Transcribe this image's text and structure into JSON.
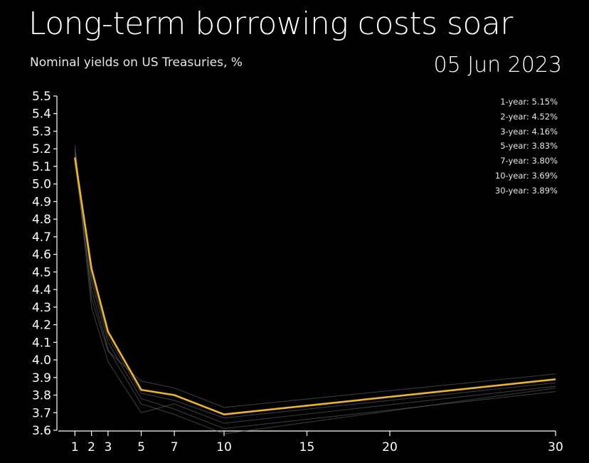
{
  "header": {
    "title": "Long-term borrowing costs soar",
    "subtitle": "Nominal yields on US Treasuries, %",
    "date": "05 Jun 2023"
  },
  "colors": {
    "background": "#000000",
    "current_line": "#f0b429",
    "history_lines": "#6a6a6a",
    "text": "#ffffff"
  },
  "chart_data": {
    "type": "line",
    "title": "Long-term borrowing costs soar",
    "subtitle": "Nominal yields on US Treasuries, %",
    "xlabel": "",
    "ylabel": "",
    "x": [
      1,
      2,
      3,
      5,
      7,
      10,
      30
    ],
    "xlim": [
      0,
      30
    ],
    "ylim": [
      3.6,
      5.5
    ],
    "x_ticks": [
      1,
      2,
      3,
      5,
      7,
      10,
      15,
      20,
      30
    ],
    "y_ticks": [
      "3.6",
      "3.7",
      "3.8",
      "3.9",
      "4.0",
      "4.1",
      "4.2",
      "4.3",
      "4.4",
      "4.5",
      "4.6",
      "4.7",
      "4.8",
      "4.9",
      "5.0",
      "5.1",
      "5.2",
      "5.3",
      "5.4",
      "5.5"
    ],
    "grid": false,
    "legend_position": "top-right",
    "series": [
      {
        "name": "05 Jun 2023",
        "highlight": true,
        "values": [
          5.15,
          4.52,
          4.16,
          3.83,
          3.8,
          3.69,
          3.89
        ]
      },
      {
        "highlight": false,
        "values": [
          5.22,
          4.35,
          4.05,
          3.88,
          3.84,
          3.73,
          3.92
        ]
      },
      {
        "highlight": false,
        "values": [
          5.18,
          4.3,
          3.99,
          3.7,
          3.75,
          3.64,
          3.85
        ]
      },
      {
        "highlight": false,
        "values": [
          5.2,
          4.45,
          4.1,
          3.78,
          3.72,
          3.61,
          3.82
        ]
      },
      {
        "highlight": false,
        "values": [
          5.12,
          4.4,
          4.06,
          3.75,
          3.69,
          3.58,
          3.84
        ]
      },
      {
        "highlight": false,
        "values": [
          5.16,
          4.48,
          4.13,
          3.81,
          3.77,
          3.67,
          3.87
        ]
      }
    ],
    "legend": [
      "1-year: 5.15%",
      "2-year: 4.52%",
      "3-year: 4.16%",
      "5-year: 3.83%",
      "7-year: 3.80%",
      "10-year: 3.69%",
      "30-year: 3.89%"
    ]
  }
}
